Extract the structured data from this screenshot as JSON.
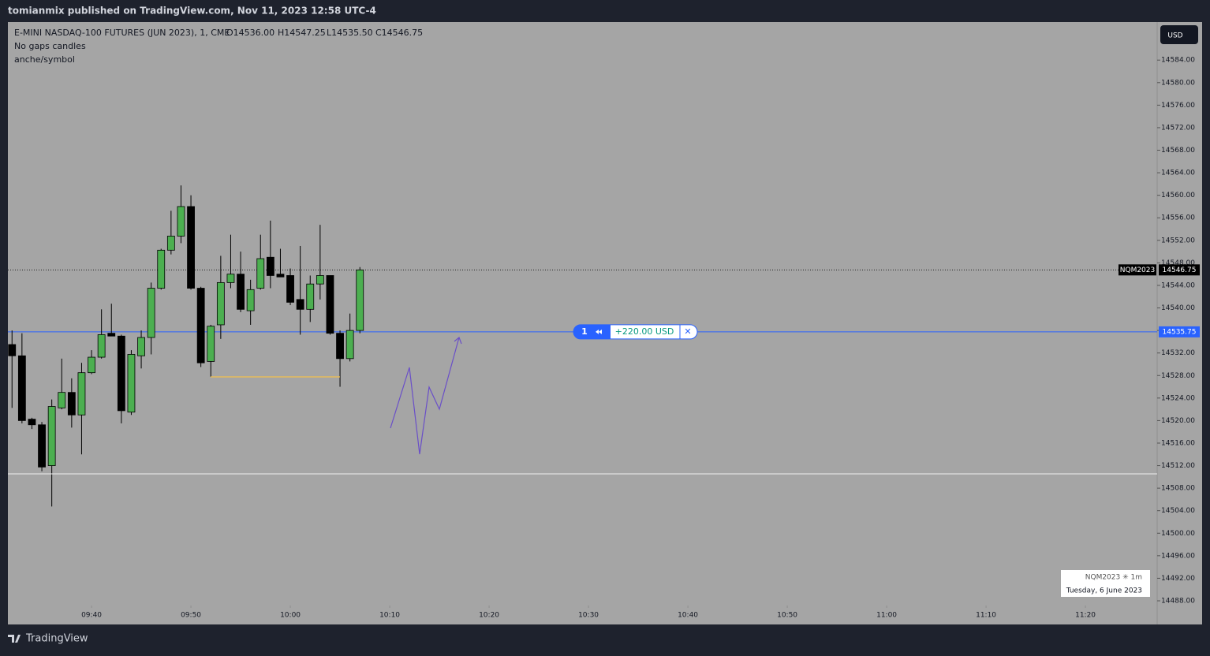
{
  "header": {
    "text": "tomianmix published on TradingView.com, Nov 11, 2023 12:58 UTC-4"
  },
  "footer": {
    "logo": "TradingView"
  },
  "chart_data": {
    "type": "candlestick",
    "legend": {
      "symbol": "E-MINI NASDAQ-100 FUTURES (JUN 2023), 1, CME",
      "ohlc_labels": [
        "O14536.00",
        "H14547.25",
        "L14535.50",
        "C14546.75"
      ],
      "lines": [
        "No gaps candles",
        "anche/symbol"
      ]
    },
    "currency": "USD",
    "x": [
      "09:32",
      "09:33",
      "09:34",
      "09:35",
      "09:36",
      "09:37",
      "09:38",
      "09:39",
      "09:40",
      "09:41",
      "09:42",
      "09:43",
      "09:44",
      "09:45",
      "09:46",
      "09:47",
      "09:48",
      "09:49",
      "09:50",
      "09:51",
      "09:52",
      "09:53",
      "09:54",
      "09:55",
      "09:56",
      "09:57",
      "09:58",
      "09:59",
      "10:00",
      "10:01",
      "10:02",
      "10:03",
      "10:04",
      "10:05",
      "10:06",
      "10:07"
    ],
    "open": [
      14533.5,
      14531.5,
      14520.25,
      14519.25,
      14512,
      14522.25,
      14525,
      14521,
      14528.5,
      14531.25,
      14535.5,
      14535,
      14521.5,
      14531.5,
      14534.75,
      14543.5,
      14550.25,
      14552.75,
      14558,
      14543.5,
      14530.5,
      14537,
      14544.5,
      14546,
      14539.5,
      14543.5,
      14549,
      14546,
      14545.75,
      14541.5,
      14539.75,
      14544.25,
      14545.75,
      14535.5,
      14531,
      14536
    ],
    "high": [
      14536,
      14535.5,
      14520.5,
      14519.75,
      14523.75,
      14531,
      14527.5,
      14530.25,
      14532.5,
      14539.75,
      14540.75,
      14535.25,
      14532.5,
      14536,
      14544.5,
      14550.5,
      14557.25,
      14561.75,
      14560,
      14543.75,
      14537,
      14549.25,
      14553,
      14550,
      14545,
      14553,
      14555.5,
      14550.5,
      14547,
      14551,
      14545.75,
      14554.75,
      14545.75,
      14536,
      14539,
      14547.25
    ],
    "low": [
      14522.25,
      14519.5,
      14518.5,
      14511,
      14504.75,
      14522,
      14518.75,
      14514,
      14528.25,
      14531,
      14535,
      14519.5,
      14521,
      14529.25,
      14531.75,
      14543.25,
      14549.5,
      14551.5,
      14543.25,
      14529.5,
      14527.75,
      14534.5,
      14543.5,
      14539.25,
      14537,
      14543.25,
      14543.5,
      14545.5,
      14540.5,
      14535.25,
      14537.5,
      14541.5,
      14535.25,
      14526,
      14530.5,
      14535.5
    ],
    "close": [
      14531.5,
      14520,
      14519.25,
      14511.75,
      14522.5,
      14525,
      14521,
      14528.5,
      14531.25,
      14535.25,
      14535,
      14521.75,
      14531.75,
      14534.75,
      14543.5,
      14550.25,
      14552.75,
      14558,
      14543.5,
      14530.25,
      14536.75,
      14544.5,
      14546,
      14539.75,
      14543.25,
      14548.75,
      14545.75,
      14545.5,
      14541,
      14539.75,
      14544.25,
      14545.75,
      14535.5,
      14531,
      14536,
      14546.75
    ],
    "up_color": "#4caf50",
    "down_color": "#000000",
    "xlim": [
      "09:31:35",
      "11:27:13"
    ],
    "xticks": [
      "09:40",
      "09:50",
      "10:00",
      "10:10",
      "10:20",
      "10:30",
      "10:40",
      "10:50",
      "11:00",
      "11:10",
      "11:20"
    ],
    "ylim": [
      14483.8,
      14590.75
    ],
    "yticks": [
      {
        "value": 14488,
        "label": "14488.00"
      },
      {
        "value": 14492,
        "label": "14492.00"
      },
      {
        "value": 14496,
        "label": "14496.00"
      },
      {
        "value": 14500,
        "label": "14500.00"
      },
      {
        "value": 14504,
        "label": "14504.00"
      },
      {
        "value": 14508,
        "label": "14508.00"
      },
      {
        "value": 14512,
        "label": "14512.00"
      },
      {
        "value": 14516,
        "label": "14516.00"
      },
      {
        "value": 14520,
        "label": "14520.00"
      },
      {
        "value": 14524,
        "label": "14524.00"
      },
      {
        "value": 14528,
        "label": "14528.00"
      },
      {
        "value": 14532,
        "label": "14532.00"
      },
      {
        "value": 14536,
        "label": "14536.00"
      },
      {
        "value": 14540,
        "label": "14540.00"
      },
      {
        "value": 14544,
        "label": "14544.00"
      },
      {
        "value": 14548,
        "label": "14548.00"
      },
      {
        "value": 14552,
        "label": "14552.00"
      },
      {
        "value": 14556,
        "label": "14556.00"
      },
      {
        "value": 14560,
        "label": "14560.00"
      },
      {
        "value": 14564,
        "label": "14564.00"
      },
      {
        "value": 14568,
        "label": "14568.00"
      },
      {
        "value": 14572,
        "label": "14572.00"
      },
      {
        "value": 14576,
        "label": "14576.00"
      },
      {
        "value": 14580,
        "label": "14580.00"
      },
      {
        "value": 14584,
        "label": "14584.00"
      }
    ],
    "last_price": {
      "symbol": "NQM2023",
      "value": 14546.75,
      "label": "14546.75"
    },
    "position": {
      "value": 14535.75,
      "label": "14535.75",
      "quantity": "1",
      "pnl": "+220.00 USD",
      "close": "✕"
    },
    "info_box": {
      "line1": "NQM2023 ✳ 1m",
      "line2": "Tuesday, 6 June 2023"
    }
  }
}
